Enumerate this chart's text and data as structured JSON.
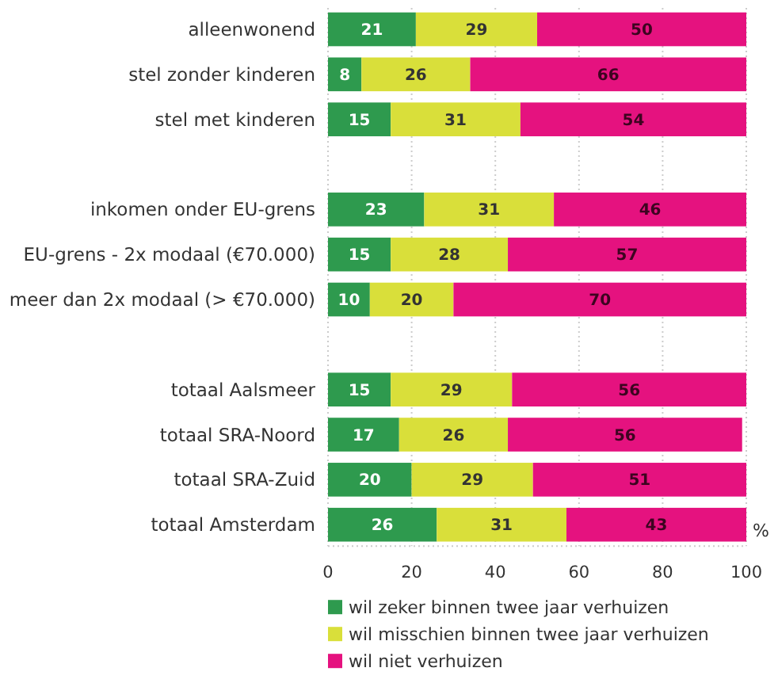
{
  "chart_data": {
    "type": "bar",
    "orientation": "horizontal",
    "stacked": true,
    "categories": [
      "alleenwonend",
      "stel zonder kinderen",
      "stel met kinderen",
      null,
      "inkomen onder EU-grens",
      "EU-grens - 2x modaal (€70.000)",
      "meer dan 2x modaal (> €70.000)",
      null,
      "totaal Aalsmeer",
      "totaal SRA-Noord",
      "totaal SRA-Zuid",
      "totaal Amsterdam"
    ],
    "series": [
      {
        "name": "wil zeker binnen twee jaar verhuizen",
        "color": "#2e9a4e",
        "values": [
          21,
          8,
          15,
          null,
          23,
          15,
          10,
          null,
          15,
          17,
          20,
          26
        ]
      },
      {
        "name": "wil misschien binnen twee jaar verhuizen",
        "color": "#d9df3a",
        "values": [
          29,
          26,
          31,
          null,
          31,
          28,
          20,
          null,
          29,
          26,
          29,
          31
        ]
      },
      {
        "name": "wil niet verhuizen",
        "color": "#e5127f",
        "values": [
          50,
          66,
          54,
          null,
          46,
          57,
          70,
          null,
          56,
          56,
          51,
          43
        ]
      }
    ],
    "xlim": [
      0,
      100
    ],
    "xticks": [
      0,
      20,
      40,
      60,
      80,
      100
    ],
    "xlabel": "%",
    "grid": "x",
    "legend": "bottom",
    "data_labels": true
  }
}
